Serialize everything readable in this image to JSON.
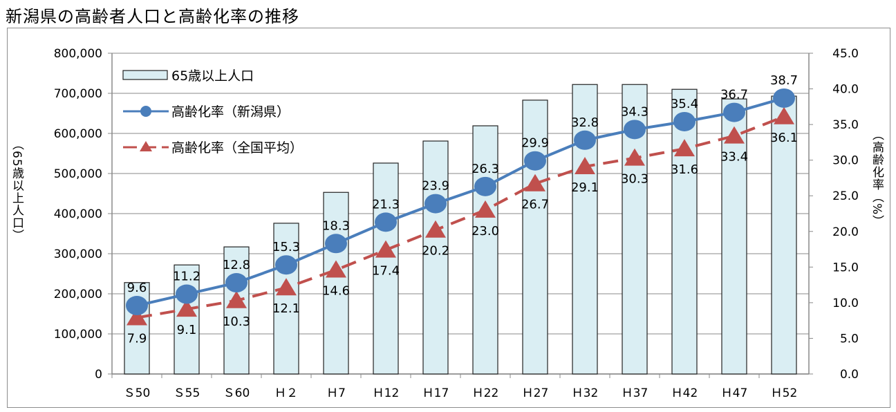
{
  "chart_data": {
    "type": "bar+line",
    "title": "新潟県の高齢者人口と高齢化率の推移",
    "categories": [
      "Ｓ50",
      "Ｓ55",
      "Ｓ60",
      "Ｈ２",
      "Ｈ7",
      "Ｈ12",
      "Ｈ17",
      "Ｈ22",
      "Ｈ27",
      "Ｈ32",
      "Ｈ37",
      "Ｈ42",
      "Ｈ47",
      "Ｈ52"
    ],
    "ylabel_left": "（65歳以上人口）",
    "ylabel_right": "（高齢化率（%）",
    "ylim_left": [
      0,
      800000
    ],
    "yticks_left": [
      "0",
      "100,000",
      "200,000",
      "300,000",
      "400,000",
      "500,000",
      "600,000",
      "700,000",
      "800,000"
    ],
    "ylim_right": [
      0,
      45
    ],
    "yticks_right": [
      "0.0",
      "5.0",
      "10.0",
      "15.0",
      "20.0",
      "25.0",
      "30.0",
      "35.0",
      "40.0",
      "45.0"
    ],
    "grid": true,
    "legend_placement": "top-left",
    "series": [
      {
        "name": "65歳以上人口",
        "type": "bar",
        "axis": "left",
        "color": "#daeef3",
        "values": [
          228000,
          272000,
          317000,
          376000,
          453000,
          526000,
          581000,
          619000,
          683000,
          722000,
          722000,
          710000,
          686000,
          693000
        ]
      },
      {
        "name": "高齢化率（新潟県）",
        "type": "line",
        "axis": "right",
        "color": "#4a7ebb",
        "marker": "circle",
        "values": [
          9.6,
          11.2,
          12.8,
          15.3,
          18.3,
          21.3,
          23.9,
          26.3,
          29.9,
          32.8,
          34.3,
          35.4,
          36.7,
          38.7
        ],
        "labels": [
          "9.6",
          "11.2",
          "12.8",
          "15.3",
          "18.3",
          "21.3",
          "23.9",
          "26.3",
          "29.9",
          "32.8",
          "34.3",
          "35.4",
          "36.7",
          "38.7"
        ]
      },
      {
        "name": "高齢化率（全国平均）",
        "type": "line",
        "axis": "right",
        "color": "#c0504d",
        "marker": "triangle",
        "dash": true,
        "values": [
          7.9,
          9.1,
          10.3,
          12.1,
          14.6,
          17.4,
          20.2,
          23.0,
          26.7,
          29.1,
          30.3,
          31.6,
          33.4,
          36.1
        ],
        "labels": [
          "7.9",
          "9.1",
          "10.3",
          "12.1",
          "14.6",
          "17.4",
          "20.2",
          "23.0",
          "26.7",
          "29.1",
          "30.3",
          "31.6",
          "33.4",
          "36.1"
        ]
      }
    ]
  }
}
